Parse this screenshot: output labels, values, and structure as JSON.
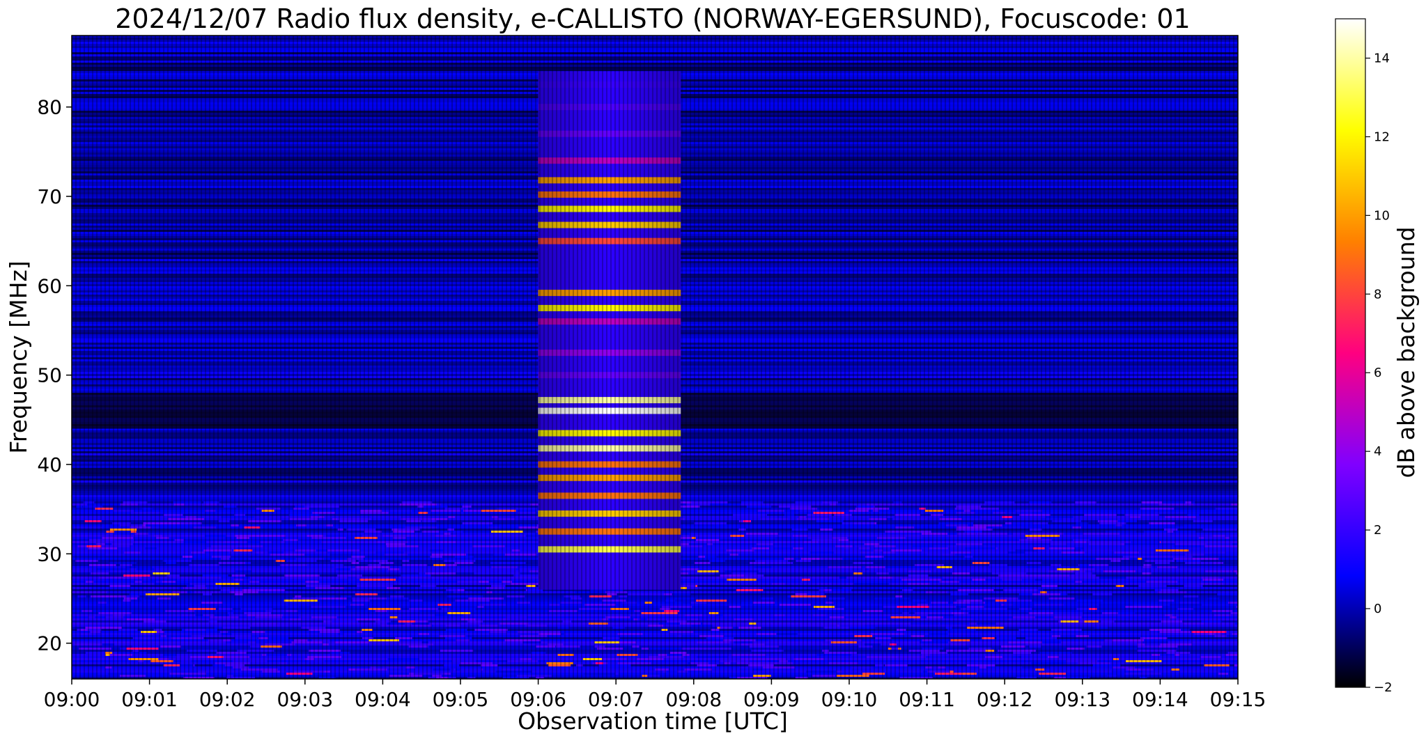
{
  "chart_data": {
    "type": "heatmap",
    "title": "2024/12/07  Radio flux density, e-CALLISTO (NORWAY-EGERSUND), Focuscode: 01",
    "xlabel": "Observation time [UTC]",
    "ylabel": "Frequency [MHz]",
    "x_ticks": [
      "09:00",
      "09:01",
      "09:02",
      "09:03",
      "09:04",
      "09:05",
      "09:06",
      "09:07",
      "09:08",
      "09:09",
      "09:10",
      "09:11",
      "09:12",
      "09:13",
      "09:14",
      "09:15"
    ],
    "xlim_minutes": [
      0,
      15
    ],
    "y_ticks": [
      20,
      30,
      40,
      50,
      60,
      70,
      80
    ],
    "ylim": [
      16,
      88
    ],
    "colorbar": {
      "label": "dB above background",
      "ticks": [
        -2,
        0,
        2,
        4,
        6,
        8,
        10,
        12,
        14
      ],
      "range": [
        -2,
        15
      ],
      "colormap": "gnuplot2",
      "stops": [
        "#000000",
        "#0000ff",
        "#8000ff",
        "#ff0080",
        "#ff8000",
        "#ffff00",
        "#ffffff"
      ]
    },
    "burst_interval": [
      "09:06",
      "09:07:50"
    ],
    "burst_bands_mhz": [
      {
        "freq": 30.5,
        "db": 13
      },
      {
        "freq": 32.5,
        "db": 9
      },
      {
        "freq": 34.5,
        "db": 11
      },
      {
        "freq": 36.5,
        "db": 9
      },
      {
        "freq": 38.5,
        "db": 10
      },
      {
        "freq": 40.0,
        "db": 9
      },
      {
        "freq": 41.8,
        "db": 14
      },
      {
        "freq": 43.5,
        "db": 12
      },
      {
        "freq": 46.0,
        "db": 15
      },
      {
        "freq": 47.2,
        "db": 14
      },
      {
        "freq": 50.0,
        "db": 3
      },
      {
        "freq": 52.5,
        "db": 4
      },
      {
        "freq": 56.0,
        "db": 5
      },
      {
        "freq": 57.5,
        "db": 12
      },
      {
        "freq": 59.2,
        "db": 10
      },
      {
        "freq": 65.0,
        "db": 8
      },
      {
        "freq": 66.8,
        "db": 11
      },
      {
        "freq": 68.6,
        "db": 12
      },
      {
        "freq": 70.2,
        "db": 9
      },
      {
        "freq": 71.8,
        "db": 10
      },
      {
        "freq": 74.0,
        "db": 5
      },
      {
        "freq": 77.0,
        "db": 3
      },
      {
        "freq": 80.0,
        "db": 2.5
      },
      {
        "freq": 82.5,
        "db": 2
      }
    ]
  }
}
